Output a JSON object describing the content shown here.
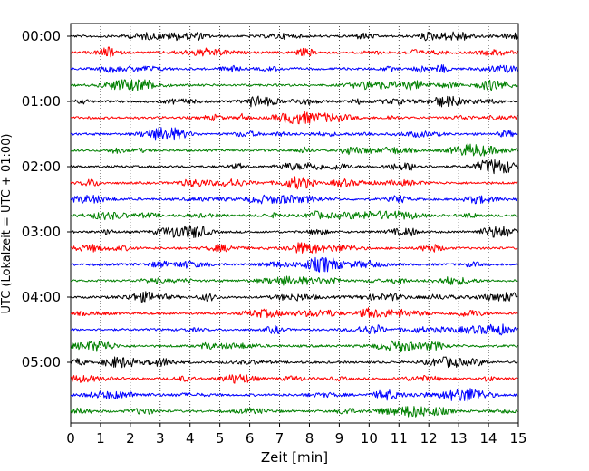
{
  "chart_data": {
    "type": "line",
    "title": "",
    "xlabel": "Zeit  [min]",
    "ylabel": "UTC (Lokalzeit = UTC + 01:00)",
    "xlim": [
      0,
      15
    ],
    "x_ticks": [
      "0",
      "1",
      "2",
      "3",
      "4",
      "5",
      "6",
      "7",
      "8",
      "9",
      "10",
      "11",
      "12",
      "13",
      "14",
      "15"
    ],
    "y_ticks": [
      "00:00",
      "01:00",
      "02:00",
      "03:00",
      "04:00",
      "05:00"
    ],
    "grid": "vertical dotted lines at each minute",
    "trace_interval_minutes": 15,
    "trace_count": 24,
    "trace_colors": [
      "#000000",
      "#ff0000",
      "#0000ff",
      "#008000"
    ],
    "series": [
      {
        "start": "00:00",
        "color": "#000000"
      },
      {
        "start": "00:15",
        "color": "#ff0000"
      },
      {
        "start": "00:30",
        "color": "#0000ff"
      },
      {
        "start": "00:45",
        "color": "#008000"
      },
      {
        "start": "01:00",
        "color": "#000000"
      },
      {
        "start": "01:15",
        "color": "#ff0000"
      },
      {
        "start": "01:30",
        "color": "#0000ff"
      },
      {
        "start": "01:45",
        "color": "#008000"
      },
      {
        "start": "02:00",
        "color": "#000000"
      },
      {
        "start": "02:15",
        "color": "#ff0000"
      },
      {
        "start": "02:30",
        "color": "#0000ff"
      },
      {
        "start": "02:45",
        "color": "#008000"
      },
      {
        "start": "03:00",
        "color": "#000000"
      },
      {
        "start": "03:15",
        "color": "#ff0000"
      },
      {
        "start": "03:30",
        "color": "#0000ff"
      },
      {
        "start": "03:45",
        "color": "#008000"
      },
      {
        "start": "04:00",
        "color": "#000000"
      },
      {
        "start": "04:15",
        "color": "#ff0000"
      },
      {
        "start": "04:30",
        "color": "#0000ff"
      },
      {
        "start": "04:45",
        "color": "#008000"
      },
      {
        "start": "05:00",
        "color": "#000000"
      },
      {
        "start": "05:15",
        "color": "#ff0000"
      },
      {
        "start": "05:30",
        "color": "#0000ff"
      },
      {
        "start": "05:45",
        "color": "#008000"
      }
    ]
  }
}
